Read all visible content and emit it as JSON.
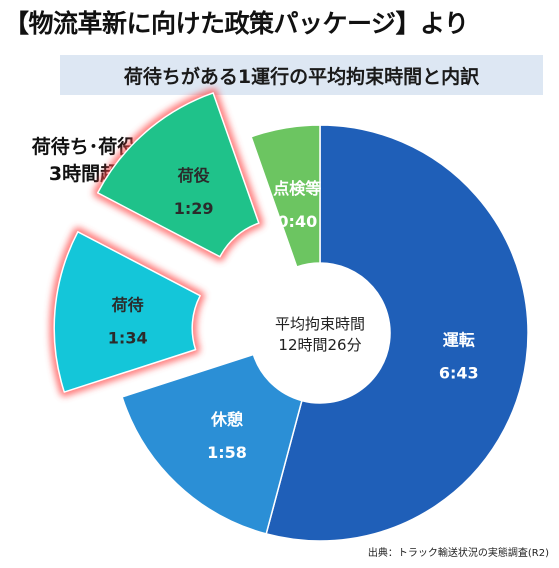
{
  "heading": "【物流革新に向けた政策パッケージ】より",
  "subtitle": "荷待ちがある1運行の平均拘束時間と内訳",
  "callout": {
    "line1": "荷待ち･荷役",
    "line2": "3時間超"
  },
  "source": "出典：トラック輸送状況の実態調査(R2)",
  "chart_data": {
    "type": "pie",
    "variant": "donut",
    "center_label": [
      "平均拘束時間",
      "12時間26分"
    ],
    "slices": [
      {
        "label": "運転",
        "value_text": "6:43",
        "minutes": 403,
        "color": "#1f5fb8",
        "exploded": false,
        "highlight": false,
        "text_color": "#ffffff"
      },
      {
        "label": "休憩",
        "value_text": "1:58",
        "minutes": 118,
        "color": "#2b8fd6",
        "exploded": false,
        "highlight": false,
        "text_color": "#ffffff"
      },
      {
        "label": "荷待",
        "value_text": "1:34",
        "minutes": 94,
        "color": "#14c6d9",
        "exploded": true,
        "highlight": true,
        "text_color": "#2b2b2b"
      },
      {
        "label": "荷役",
        "value_text": "1:29",
        "minutes": 89,
        "color": "#1fc28a",
        "exploded": true,
        "highlight": true,
        "text_color": "#2b2b2b"
      },
      {
        "label": "点検等",
        "value_text": "0:40",
        "minutes": 40,
        "color": "#6cc561",
        "exploded": false,
        "highlight": false,
        "text_color": "#ffffff"
      }
    ],
    "highlight_color": "#ff4a4a"
  }
}
